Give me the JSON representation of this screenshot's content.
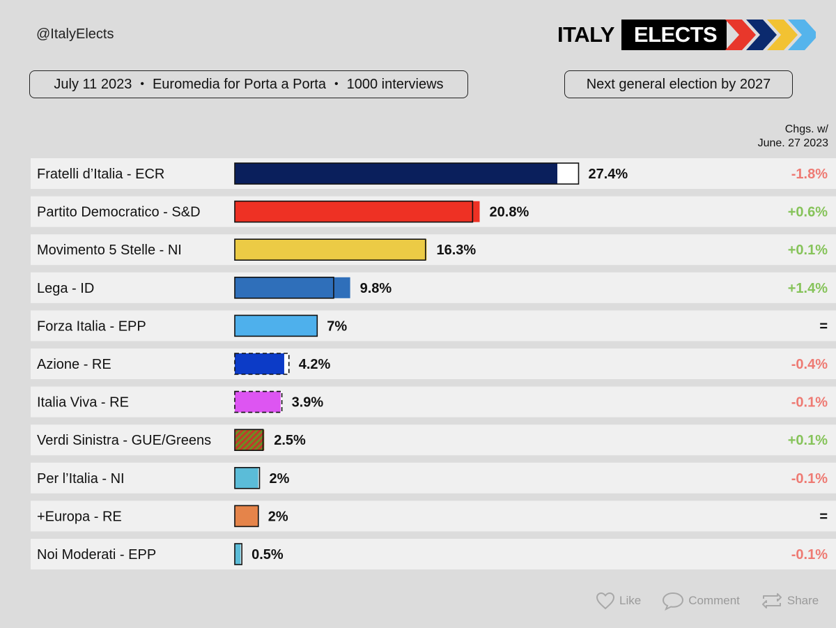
{
  "header": {
    "handle": "@ItalyElects",
    "logo_word1": "ITALY",
    "logo_word2": "ELECTS",
    "logo_arrow_colors": [
      "#e8372b",
      "#0b2a6e",
      "#f2c232",
      "#55b4ec"
    ]
  },
  "info": {
    "date": "July 11 2023",
    "pollster": "Euromedia for Porta a Porta",
    "sample": "1000 interviews",
    "separator": "•",
    "next_election": "Next general election by 2027"
  },
  "changes_header": {
    "line1": "Chgs. w/",
    "line2": "June. 27 2023"
  },
  "chart_data": {
    "type": "bar",
    "orientation": "horizontal",
    "categories": [
      "Fratelli d’Italia - ECR",
      "Partito Democratico - S&D",
      "Movimento 5 Stelle - NI",
      "Lega - ID",
      "Forza Italia - EPP",
      "Azione - RE",
      "Italia Viva - RE",
      "Verdi Sinistra - GUE/Greens",
      "Per l’Italia - NI",
      "+Europa - RE",
      "Noi Moderati - EPP"
    ],
    "values": [
      27.4,
      20.8,
      16.3,
      9.8,
      7,
      4.2,
      3.9,
      2.5,
      2,
      2,
      0.5
    ],
    "value_labels": [
      "27.4%",
      "20.8%",
      "16.3%",
      "9.8%",
      "7%",
      "4.2%",
      "3.9%",
      "2.5%",
      "2%",
      "2%",
      "0.5%"
    ],
    "previous_values": [
      29.2,
      20.2,
      16.2,
      8.4,
      7,
      4.6,
      4.0,
      2.4,
      2.1,
      2,
      0.6
    ],
    "changes": [
      "-1.8%",
      "+0.6%",
      "+0.1%",
      "+1.4%",
      "=",
      "-0.4%",
      "-0.1%",
      "+0.1%",
      "-0.1%",
      "=",
      "-0.1%"
    ],
    "colors": [
      "#0a1f5c",
      "#ee3124",
      "#eccb45",
      "#2f6fba",
      "#4eb0ec",
      "#0c3bc7",
      "#dd55f2",
      "#a0522d",
      "#5bbcd8",
      "#e5844a",
      "#5bbcd8"
    ],
    "patterns": [
      "solid",
      "solid",
      "solid",
      "solid",
      "solid",
      "dashed",
      "dashed",
      "hatched",
      "solid",
      "solid",
      "solid"
    ],
    "change_colors": {
      "negative": "#ee7a73",
      "positive": "#86c35a",
      "neutral": "#111111"
    }
  },
  "actions": {
    "like": "Like",
    "comment": "Comment",
    "share": "Share"
  }
}
